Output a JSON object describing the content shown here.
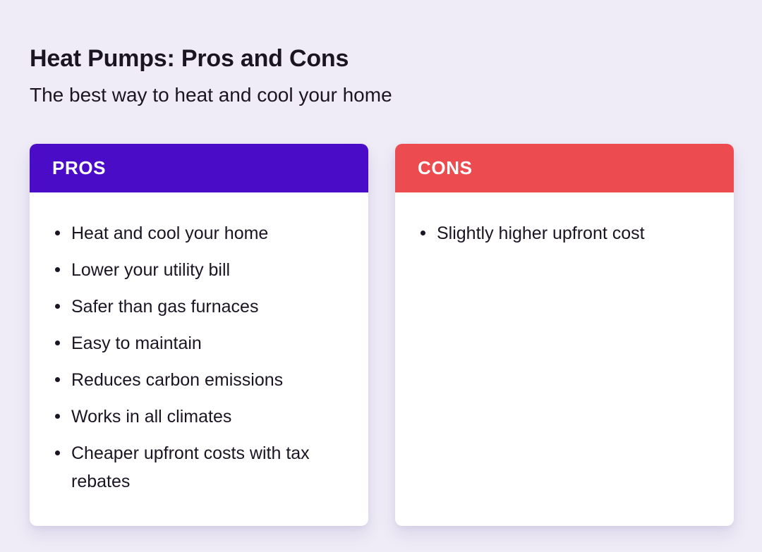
{
  "page": {
    "title": "Heat Pumps: Pros and Cons",
    "subtitle": "The best way to heat and cool your home"
  },
  "colors": {
    "background": "#efecf7",
    "pros_header": "#4a0cc7",
    "cons_header": "#ec4b4f",
    "card_background": "#ffffff",
    "text": "#1b1523",
    "header_text": "#ffffff"
  },
  "pros_card": {
    "header": "PROS",
    "items": [
      "Heat and cool your home",
      "Lower your utility bill",
      "Safer than gas furnaces",
      "Easy to maintain",
      "Reduces carbon emissions",
      "Works in all climates",
      "Cheaper upfront costs with tax rebates"
    ]
  },
  "cons_card": {
    "header": "CONS",
    "items": [
      "Slightly higher upfront cost"
    ]
  }
}
